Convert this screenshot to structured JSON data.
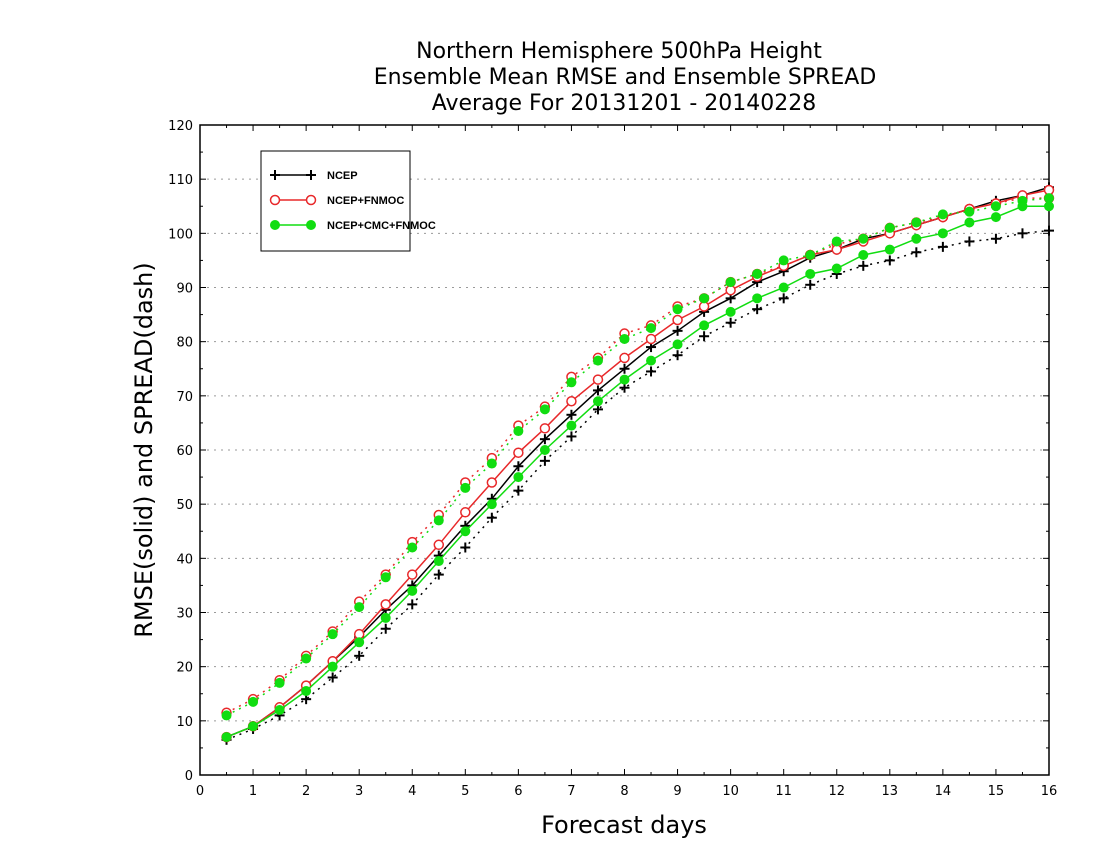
{
  "chart_data": {
    "type": "line",
    "title": [
      "Northern Hemisphere 500hPa Height",
      "Ensemble Mean RMSE and Ensemble SPREAD",
      "Average For 20131201 - 20140228"
    ],
    "xlabel": "Forecast days",
    "ylabel": "RMSE(solid) and SPREAD(dash)",
    "xlim": [
      0,
      16
    ],
    "ylim": [
      0,
      120
    ],
    "xticks": [
      0,
      1,
      2,
      3,
      4,
      5,
      6,
      7,
      8,
      9,
      10,
      11,
      12,
      13,
      14,
      15,
      16
    ],
    "yticks": [
      0,
      10,
      20,
      30,
      40,
      50,
      60,
      70,
      80,
      90,
      100,
      110,
      120
    ],
    "grid": "horizontal dotted",
    "legend_position": "top-left",
    "x": [
      0.5,
      1,
      1.5,
      2,
      2.5,
      3,
      3.5,
      4,
      4.5,
      5,
      5.5,
      6,
      6.5,
      7,
      7.5,
      8,
      8.5,
      9,
      9.5,
      10,
      10.5,
      11,
      11.5,
      12,
      12.5,
      13,
      13.5,
      14,
      14.5,
      15,
      15.5,
      16
    ],
    "series": [
      {
        "name": "NCEP",
        "color": "#000000",
        "marker": "plus",
        "rmse": [
          7.0,
          9.0,
          12.5,
          16.5,
          21.0,
          25.5,
          30.5,
          35.0,
          40.5,
          46.0,
          51.0,
          57.0,
          62.0,
          66.5,
          71.0,
          75.0,
          79.0,
          82.0,
          85.5,
          88.0,
          91.0,
          93.0,
          95.5,
          97.0,
          99.0,
          100.0,
          101.5,
          103.0,
          104.5,
          106.0,
          107.0,
          108.5
        ],
        "spread": [
          6.5,
          8.5,
          11.0,
          14.0,
          18.0,
          22.0,
          27.0,
          31.5,
          37.0,
          42.0,
          47.5,
          52.5,
          58.0,
          62.5,
          67.5,
          71.5,
          74.5,
          77.5,
          81.0,
          83.5,
          86.0,
          88.0,
          90.5,
          92.5,
          94.0,
          95.0,
          96.5,
          97.5,
          98.5,
          99.0,
          100.0,
          100.5
        ]
      },
      {
        "name": "NCEP+FNMOC",
        "color": "#e8282a",
        "marker": "open-circle",
        "rmse": [
          7.0,
          9.0,
          12.5,
          16.5,
          21.0,
          26.0,
          31.5,
          37.0,
          42.5,
          48.5,
          54.0,
          59.5,
          64.0,
          69.0,
          73.0,
          77.0,
          80.5,
          84.0,
          86.5,
          89.5,
          92.0,
          94.0,
          96.0,
          97.0,
          98.5,
          100.0,
          101.5,
          103.0,
          104.5,
          105.5,
          107.0,
          108.0
        ],
        "spread": [
          11.5,
          14.0,
          17.5,
          22.0,
          26.5,
          32.0,
          37.0,
          43.0,
          48.0,
          54.0,
          58.5,
          64.5,
          68.0,
          73.5,
          77.0,
          81.5,
          83.0,
          86.5,
          88.0,
          91.0,
          92.5,
          94.0,
          96.0,
          98.0,
          99.0,
          101.0,
          102.0,
          103.0,
          104.5,
          105.5,
          106.5,
          106.5
        ]
      },
      {
        "name": "NCEP+CMC+FNMOC",
        "color": "#11dd11",
        "marker": "filled-circle",
        "rmse": [
          7.0,
          9.0,
          12.0,
          15.5,
          20.0,
          24.5,
          29.0,
          34.0,
          39.5,
          45.0,
          50.0,
          55.0,
          60.0,
          64.5,
          69.0,
          73.0,
          76.5,
          79.5,
          83.0,
          85.5,
          88.0,
          90.0,
          92.5,
          93.5,
          96.0,
          97.0,
          99.0,
          100.0,
          102.0,
          103.0,
          105.0,
          105.0
        ],
        "spread": [
          11.0,
          13.5,
          17.0,
          21.5,
          26.0,
          31.0,
          36.5,
          42.0,
          47.0,
          53.0,
          57.5,
          63.5,
          67.5,
          72.5,
          76.5,
          80.5,
          82.5,
          86.0,
          88.0,
          91.0,
          92.5,
          95.0,
          96.0,
          98.5,
          99.0,
          101.0,
          102.0,
          103.5,
          104.0,
          105.0,
          106.0,
          106.5
        ]
      }
    ]
  }
}
